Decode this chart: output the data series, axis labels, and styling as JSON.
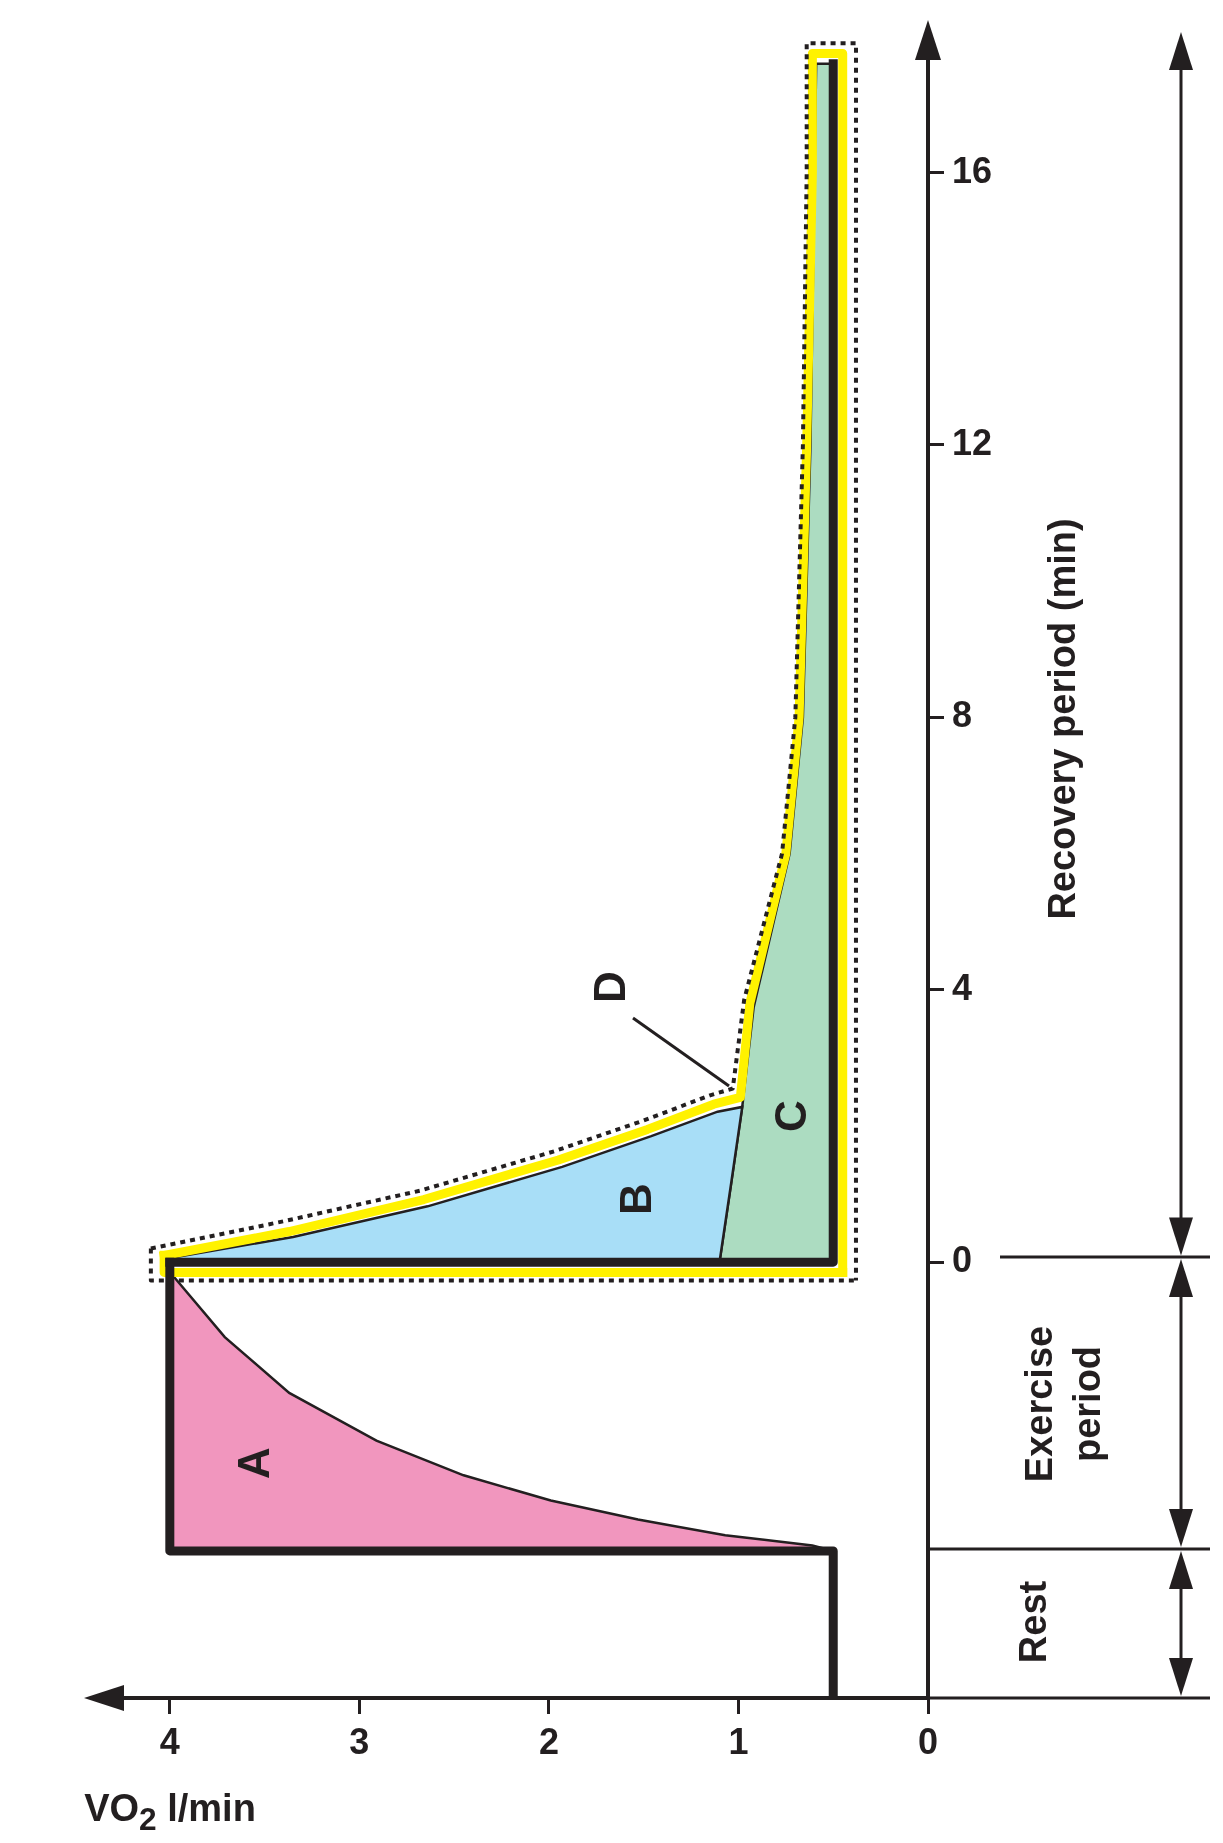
{
  "chart_data": {
    "type": "line",
    "xlabel": "VO$_{2}$ l/min",
    "ylabel": "Recovery period (min)",
    "xlim": [
      4.4,
      0
    ],
    "ylim": [
      -6.4,
      18.1
    ],
    "xticks": [
      0,
      1,
      2,
      3,
      4
    ],
    "yticks": [
      0,
      4,
      8,
      12,
      16
    ],
    "grid": false,
    "legend": false,
    "marker": "none",
    "series": [
      {
        "type": "area",
        "color": "#f196be",
        "x": [
          0.5,
          0.61,
          1.07,
          1.53,
          1.99,
          2.45,
          2.91,
          3.37,
          3.71,
          3.98,
          4,
          4,
          0.5
        ],
        "values": [
          -4.24,
          -4.16,
          -4.01,
          -3.78,
          -3.5,
          -3.13,
          -2.62,
          -1.92,
          -1.1,
          -0.21,
          0,
          -4.24,
          -4.24
        ]
      },
      {
        "type": "area",
        "color": "#acdcc1",
        "x": [
          1.1,
          1.04,
          0.98,
          0.92,
          0.73,
          0.66,
          0.62,
          0.59,
          0.5,
          0.5,
          1.1
        ],
        "values": [
          0,
          1.13,
          2.28,
          3.74,
          6,
          8,
          12,
          17.6,
          17.6,
          0,
          0
        ]
      },
      {
        "type": "area",
        "color": "#a8def7",
        "x": [
          4,
          3.96,
          3.35,
          2.64,
          1.93,
          1.46,
          1.11,
          0.98,
          1.04,
          1.1,
          4
        ],
        "values": [
          0,
          0.08,
          0.37,
          0.82,
          1.4,
          1.85,
          2.21,
          2.28,
          1.13,
          0,
          0
        ]
      },
      {
        "color": "#fff200",
        "line_style": "solid",
        "x": [
          4.03,
          3.37,
          2.66,
          1.95,
          1.48,
          1.13,
          0.99,
          0.94,
          0.75,
          0.68,
          0.64,
          0.61,
          0.61,
          0.45,
          0.45
        ],
        "values": [
          0.1,
          0.45,
          0.92,
          1.5,
          1.95,
          2.32,
          2.42,
          3.8,
          6,
          8,
          12,
          16,
          17.75,
          17.75,
          -0.15
        ]
      },
      {
        "color": "#fff200",
        "line_style": "solid",
        "x": [
          4.03,
          4.03,
          0.45
        ],
        "values": [
          0.1,
          -0.15,
          -0.15
        ]
      },
      {
        "color": "#231f20",
        "line_style": "dotted",
        "x": [
          4.1,
          3.4,
          2.68,
          1.97,
          1.5,
          1.15,
          1.03,
          0.97,
          0.77,
          0.7,
          0.66,
          0.64,
          0.64,
          0.38,
          0.38
        ],
        "values": [
          0.2,
          0.6,
          1.05,
          1.63,
          2.08,
          2.45,
          2.55,
          3.85,
          6,
          8,
          12,
          16,
          17.9,
          17.9,
          -0.27
        ]
      },
      {
        "color": "#231f20",
        "line_style": "dotted",
        "x": [
          4.1,
          4.1,
          0.38
        ],
        "values": [
          0.2,
          -0.27,
          -0.27
        ]
      },
      {
        "color": "#231f20",
        "line_style": "solid",
        "x": [
          0.5,
          0.5,
          4,
          4
        ],
        "values": [
          -6.4,
          -4.24,
          -4.24,
          0
        ]
      },
      {
        "color": "#231f20",
        "line_style": "solid",
        "x": [
          4,
          0.5,
          0.5
        ],
        "values": [
          0,
          0,
          17.6
        ]
      }
    ],
    "annotations": [
      "A",
      "B",
      "C",
      {
        "text": "D",
        "x": 1.03,
        "y": 2.55
      },
      "Rest",
      "Exercise period"
    ]
  }
}
